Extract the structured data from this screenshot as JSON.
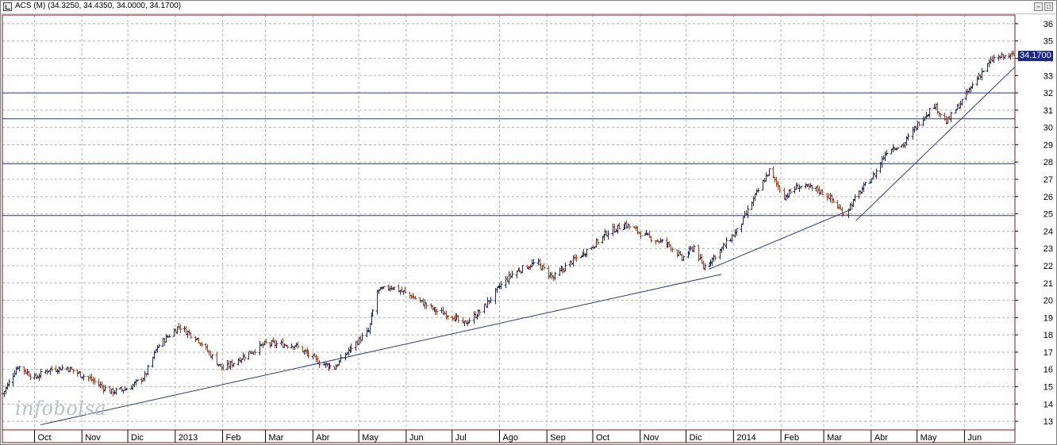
{
  "window": {
    "title": "ACS (M) (34.3250, 34.4350, 34.0000, 34.1700)",
    "buttons": [
      "minimize",
      "maximize",
      "close"
    ]
  },
  "watermark": "infobolsa",
  "last_price_label": "34.1700",
  "colors": {
    "up_bar": "#1a2a6a",
    "down_bar": "#b03a10",
    "trendline": "#2a3a8a",
    "support_line": "#2a3a8a",
    "grid": "#b4b4b4",
    "axis_frame": "#8b1010",
    "price_tag_bg": "#1a2a8a"
  },
  "chart_data": {
    "type": "ohlc",
    "title": "",
    "xlabel": "",
    "ylabel": "",
    "ylim": [
      12.5,
      36.5
    ],
    "y_ticks": [
      13,
      14,
      15,
      16,
      17,
      18,
      19,
      20,
      21,
      22,
      23,
      24,
      25,
      26,
      27,
      28,
      29,
      30,
      31,
      32,
      33,
      34,
      35,
      36
    ],
    "x_ticks": [
      "Oct",
      "Nov",
      "Dic",
      "2013",
      "Feb",
      "Mar",
      "Abr",
      "May",
      "Jun",
      "Jul",
      "Ago",
      "Sep",
      "Oct",
      "Nov",
      "Dic",
      "2014",
      "Feb",
      "Mar",
      "Abr",
      "May",
      "Jun"
    ],
    "x_range": [
      "2012-09-10",
      "2014-07-04"
    ],
    "grid": true,
    "close_anchors": [
      [
        "2012-09-10",
        14.6
      ],
      [
        "2012-09-20",
        16.2
      ],
      [
        "2012-10-01",
        15.5
      ],
      [
        "2012-10-10",
        16.0
      ],
      [
        "2012-10-22",
        16.1
      ],
      [
        "2012-11-05",
        15.5
      ],
      [
        "2012-11-20",
        14.7
      ],
      [
        "2012-12-01",
        14.9
      ],
      [
        "2012-12-12",
        15.6
      ],
      [
        "2012-12-20",
        17.3
      ],
      [
        "2013-01-03",
        18.5
      ],
      [
        "2013-01-15",
        17.8
      ],
      [
        "2013-02-01",
        16.0
      ],
      [
        "2013-02-15",
        16.8
      ],
      [
        "2013-03-01",
        17.5
      ],
      [
        "2013-03-20",
        17.4
      ],
      [
        "2013-04-05",
        16.4
      ],
      [
        "2013-04-15",
        16.1
      ],
      [
        "2013-04-25",
        17.2
      ],
      [
        "2013-05-07",
        18.2
      ],
      [
        "2013-05-13",
        20.5
      ],
      [
        "2013-05-22",
        20.8
      ],
      [
        "2013-06-05",
        20.2
      ],
      [
        "2013-06-20",
        19.4
      ],
      [
        "2013-07-01",
        19.1
      ],
      [
        "2013-07-08",
        18.6
      ],
      [
        "2013-07-20",
        19.4
      ],
      [
        "2013-08-01",
        20.8
      ],
      [
        "2013-08-10",
        21.6
      ],
      [
        "2013-08-25",
        22.2
      ],
      [
        "2013-09-05",
        21.3
      ],
      [
        "2013-09-15",
        22.1
      ],
      [
        "2013-09-30",
        23.1
      ],
      [
        "2013-10-10",
        23.9
      ],
      [
        "2013-10-22",
        24.4
      ],
      [
        "2013-11-05",
        23.7
      ],
      [
        "2013-11-20",
        23.2
      ],
      [
        "2013-11-28",
        22.4
      ],
      [
        "2013-12-06",
        23.1
      ],
      [
        "2013-12-12",
        21.9
      ],
      [
        "2013-12-20",
        22.6
      ],
      [
        "2014-01-03",
        24.0
      ],
      [
        "2014-01-15",
        26.0
      ],
      [
        "2014-01-24",
        27.5
      ],
      [
        "2014-02-03",
        26.0
      ],
      [
        "2014-02-12",
        26.6
      ],
      [
        "2014-02-25",
        26.4
      ],
      [
        "2014-03-04",
        26.0
      ],
      [
        "2014-03-14",
        25.0
      ],
      [
        "2014-03-24",
        26.2
      ],
      [
        "2014-04-03",
        27.3
      ],
      [
        "2014-04-12",
        28.8
      ],
      [
        "2014-04-22",
        29.0
      ],
      [
        "2014-05-02",
        30.3
      ],
      [
        "2014-05-12",
        31.3
      ],
      [
        "2014-05-20",
        30.3
      ],
      [
        "2014-06-02",
        31.9
      ],
      [
        "2014-06-10",
        33.0
      ],
      [
        "2014-06-20",
        34.0
      ],
      [
        "2014-07-03",
        34.17
      ]
    ],
    "horizontal_lines": [
      32.0,
      30.5,
      27.9,
      24.9
    ],
    "trendlines": [
      {
        "from": [
          "2012-10-05",
          12.8
        ],
        "to": [
          "2013-12-24",
          21.5
        ]
      },
      {
        "from": [
          "2013-12-16",
          21.8
        ],
        "to": [
          "2014-03-20",
          25.3
        ]
      },
      {
        "from": [
          "2014-03-22",
          24.6
        ],
        "to": [
          "2014-07-04",
          33.5
        ]
      }
    ]
  }
}
